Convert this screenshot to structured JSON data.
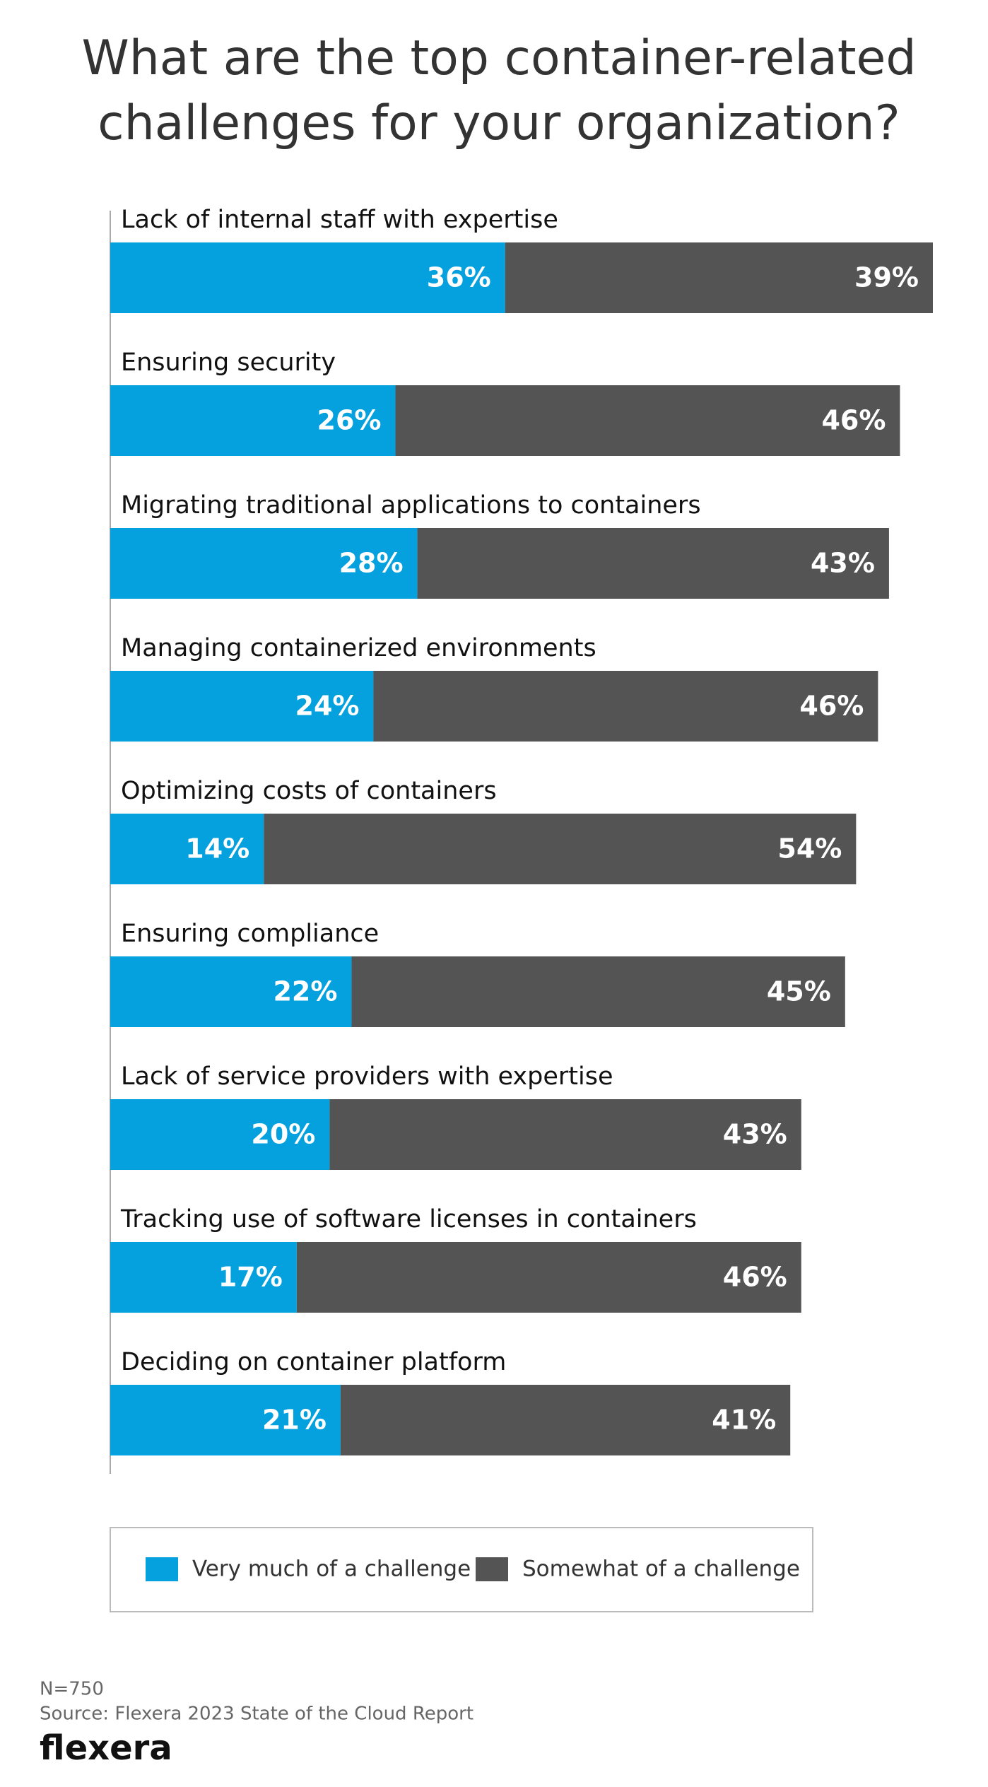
{
  "chart_data": {
    "type": "bar",
    "orientation": "horizontal",
    "stacked": true,
    "title": "What are the top container-related challenges for your organization?",
    "categories": [
      "Lack of internal staff with expertise",
      "Ensuring security",
      "Migrating traditional applications to containers",
      "Managing containerized environments",
      "Optimizing costs of containers",
      "Ensuring compliance",
      "Lack of service providers with expertise",
      "Tracking use of software licenses in containers",
      "Deciding on container platform"
    ],
    "series": [
      {
        "name": "Very much of a challenge",
        "color": "#05a0de",
        "values": [
          36,
          26,
          28,
          24,
          14,
          22,
          20,
          17,
          21
        ],
        "value_labels": [
          "36%",
          "26%",
          "28%",
          "24%",
          "14%",
          "22%",
          "20%",
          "17%",
          "21%"
        ]
      },
      {
        "name": "Somewhat of a challenge",
        "color": "#545454",
        "values": [
          39,
          46,
          43,
          46,
          54,
          45,
          43,
          46,
          41
        ],
        "value_labels": [
          "39%",
          "46%",
          "43%",
          "46%",
          "54%",
          "45%",
          "43%",
          "46%",
          "41%"
        ]
      }
    ],
    "note": "N=750",
    "source": "Source: Flexera 2023 State of the Cloud Report",
    "logo": "flexera"
  }
}
